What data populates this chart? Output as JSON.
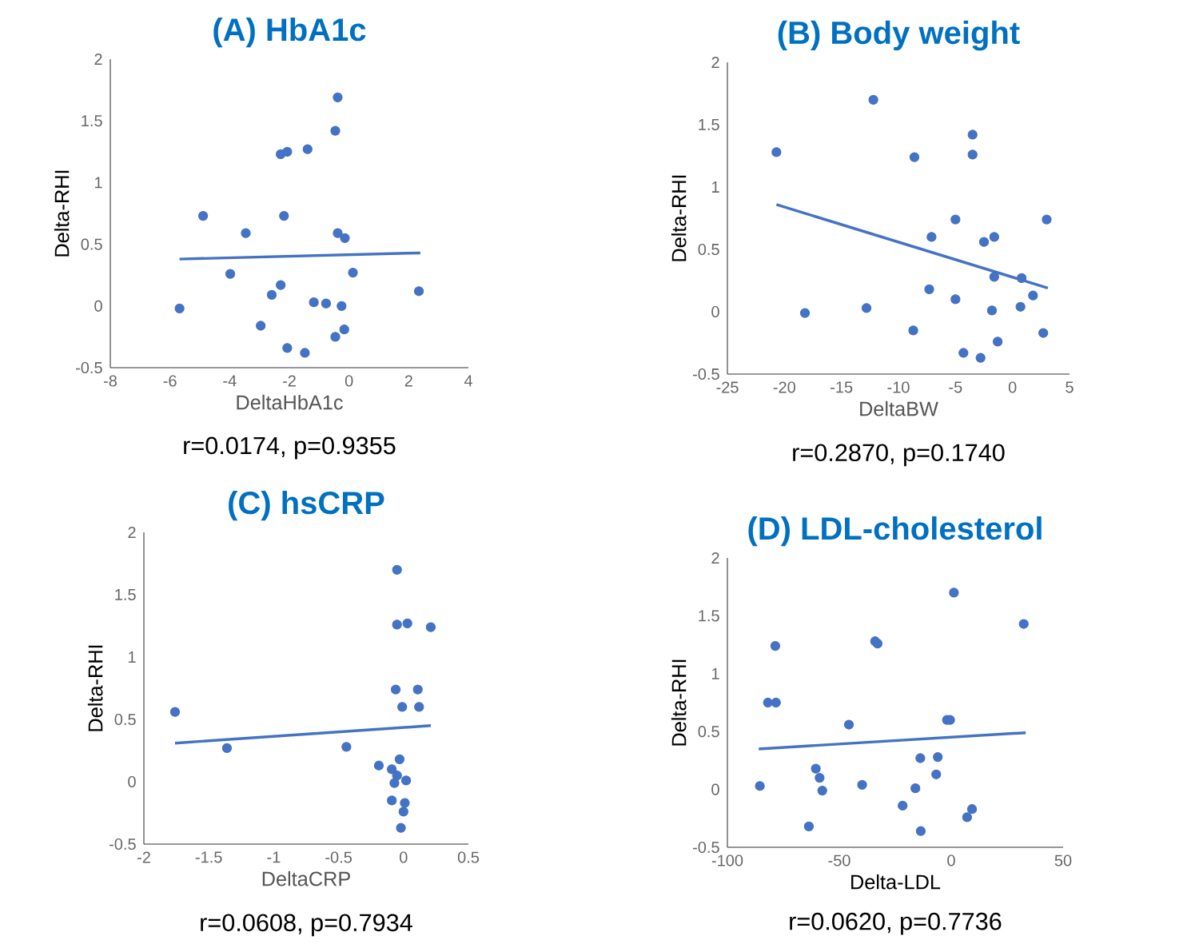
{
  "chart_data": [
    {
      "type": "scatter",
      "title": "(A) HbA1c",
      "xlabel": "DeltaHbA1c",
      "ylabel": "Delta-RHI",
      "annotations": [
        "r=0.0174, p=0.9355"
      ],
      "xlim": [
        -8,
        4
      ],
      "ylim": [
        -0.5,
        2
      ],
      "xticks": [
        -8,
        -6,
        -4,
        -2,
        0,
        2,
        4
      ],
      "yticks": [
        -0.5,
        0,
        0.5,
        1,
        1.5,
        2
      ],
      "series": [
        {
          "marker": "circle",
          "color": "#4472c4",
          "x": [
            -0.38,
            -0.46,
            -1.39,
            -2.07,
            -2.29,
            -4.89,
            -2.18,
            -3.46,
            -0.38,
            -0.14,
            -3.98,
            0.13,
            -2.29,
            2.34,
            -2.59,
            -5.68,
            -1.18,
            -0.77,
            -0.25,
            -2.96,
            -0.46,
            -0.16,
            -2.07,
            -1.48
          ],
          "values": [
            1.69,
            1.42,
            1.27,
            1.25,
            1.23,
            0.73,
            0.73,
            0.59,
            0.59,
            0.55,
            0.26,
            0.27,
            0.17,
            0.12,
            0.09,
            -0.02,
            0.03,
            0.02,
            0.0,
            -0.16,
            -0.25,
            -0.19,
            -0.34,
            -0.38
          ]
        },
        {
          "type": "line",
          "marker": "none",
          "color": "#4472c4",
          "x": [
            -5.68,
            2.39
          ],
          "values": [
            0.38,
            0.43
          ]
        }
      ]
    },
    {
      "type": "scatter",
      "title": "(B) Body weight",
      "xlabel": "DeltaBW",
      "ylabel": "Delta-RHI",
      "annotations": [
        "r=0.2870, p=0.1740"
      ],
      "xlim": [
        -25,
        5
      ],
      "ylim": [
        -0.5,
        2
      ],
      "xticks": [
        -25,
        -20,
        -15,
        -10,
        -5,
        0,
        5
      ],
      "yticks": [
        -0.5,
        0,
        0.5,
        1,
        1.5,
        2
      ],
      "series": [
        {
          "marker": "circle",
          "color": "#4472c4",
          "x": [
            -12.2,
            -20.7,
            -8.6,
            -3.5,
            -3.5,
            -5.0,
            3.0,
            -7.1,
            -1.6,
            -2.5,
            -1.6,
            0.8,
            -7.3,
            1.8,
            -5.0,
            -18.2,
            -12.8,
            -1.8,
            0.7,
            -8.7,
            2.7,
            -1.3,
            -4.3,
            -2.8
          ],
          "values": [
            1.7,
            1.28,
            1.24,
            1.42,
            1.26,
            0.74,
            0.74,
            0.6,
            0.6,
            0.56,
            0.28,
            0.27,
            0.18,
            0.13,
            0.1,
            -0.01,
            0.03,
            0.01,
            0.04,
            -0.15,
            -0.17,
            -0.24,
            -0.33,
            -0.37
          ]
        },
        {
          "type": "line",
          "marker": "none",
          "color": "#4472c4",
          "x": [
            -20.7,
            3.1
          ],
          "values": [
            0.86,
            0.19
          ]
        }
      ]
    },
    {
      "type": "scatter",
      "title": "(C) hsCRP",
      "xlabel": "DeltaCRP",
      "ylabel": "Delta-RHI",
      "annotations": [
        "r=0.0608, p=0.7934"
      ],
      "xlim": [
        -2,
        0.5
      ],
      "ylim": [
        -0.5,
        2
      ],
      "xticks": [
        -2,
        -1.5,
        -1,
        -0.5,
        0,
        0.5
      ],
      "yticks": [
        -0.5,
        0,
        0.5,
        1,
        1.5,
        2
      ],
      "series": [
        {
          "marker": "circle",
          "color": "#4472c4",
          "x": [
            -0.05,
            -0.05,
            0.03,
            0.21,
            -0.06,
            0.11,
            -0.01,
            0.12,
            -1.76,
            -1.36,
            -0.44,
            -0.03,
            -0.19,
            -0.09,
            -0.05,
            -0.07,
            0.02,
            -0.09,
            0.01,
            0.0,
            -0.02
          ],
          "values": [
            1.7,
            1.26,
            1.27,
            1.24,
            0.74,
            0.74,
            0.6,
            0.6,
            0.56,
            0.27,
            0.28,
            0.18,
            0.13,
            0.1,
            0.05,
            -0.01,
            0.01,
            -0.15,
            -0.17,
            -0.24,
            -0.37
          ]
        },
        {
          "type": "line",
          "marker": "none",
          "color": "#4472c4",
          "x": [
            -1.76,
            0.21
          ],
          "values": [
            0.31,
            0.45
          ]
        }
      ]
    },
    {
      "type": "scatter",
      "title": "(D) LDL-cholesterol",
      "xlabel": "Delta-LDL",
      "ylabel": "Delta-RHI",
      "annotations": [
        "r=0.0620, p=0.7736"
      ],
      "xlim": [
        -100,
        50
      ],
      "ylim": [
        -0.5,
        2
      ],
      "xticks": [
        -100,
        -50,
        0,
        50
      ],
      "yticks": [
        -0.5,
        0,
        0.5,
        1,
        1.5,
        2
      ],
      "series": [
        {
          "marker": "circle",
          "color": "#4472c4",
          "x": [
            1.2,
            32.4,
            -78.6,
            -34.0,
            -32.9,
            -81.9,
            -78.3,
            -45.7,
            -1.9,
            -0.5,
            -13.8,
            -6.0,
            -60.5,
            -58.8,
            -6.7,
            -85.5,
            -57.6,
            -39.8,
            -16.0,
            -21.7,
            -63.6,
            -13.6,
            7.1,
            9.3
          ],
          "values": [
            1.7,
            1.43,
            1.24,
            1.28,
            1.26,
            0.75,
            0.75,
            0.56,
            0.6,
            0.6,
            0.27,
            0.28,
            0.18,
            0.1,
            0.13,
            0.03,
            -0.01,
            0.04,
            0.01,
            -0.14,
            -0.32,
            -0.36,
            -0.24,
            -0.17
          ]
        },
        {
          "type": "line",
          "marker": "none",
          "color": "#4472c4",
          "x": [
            -86,
            33.3
          ],
          "values": [
            0.35,
            0.49
          ]
        }
      ]
    }
  ]
}
